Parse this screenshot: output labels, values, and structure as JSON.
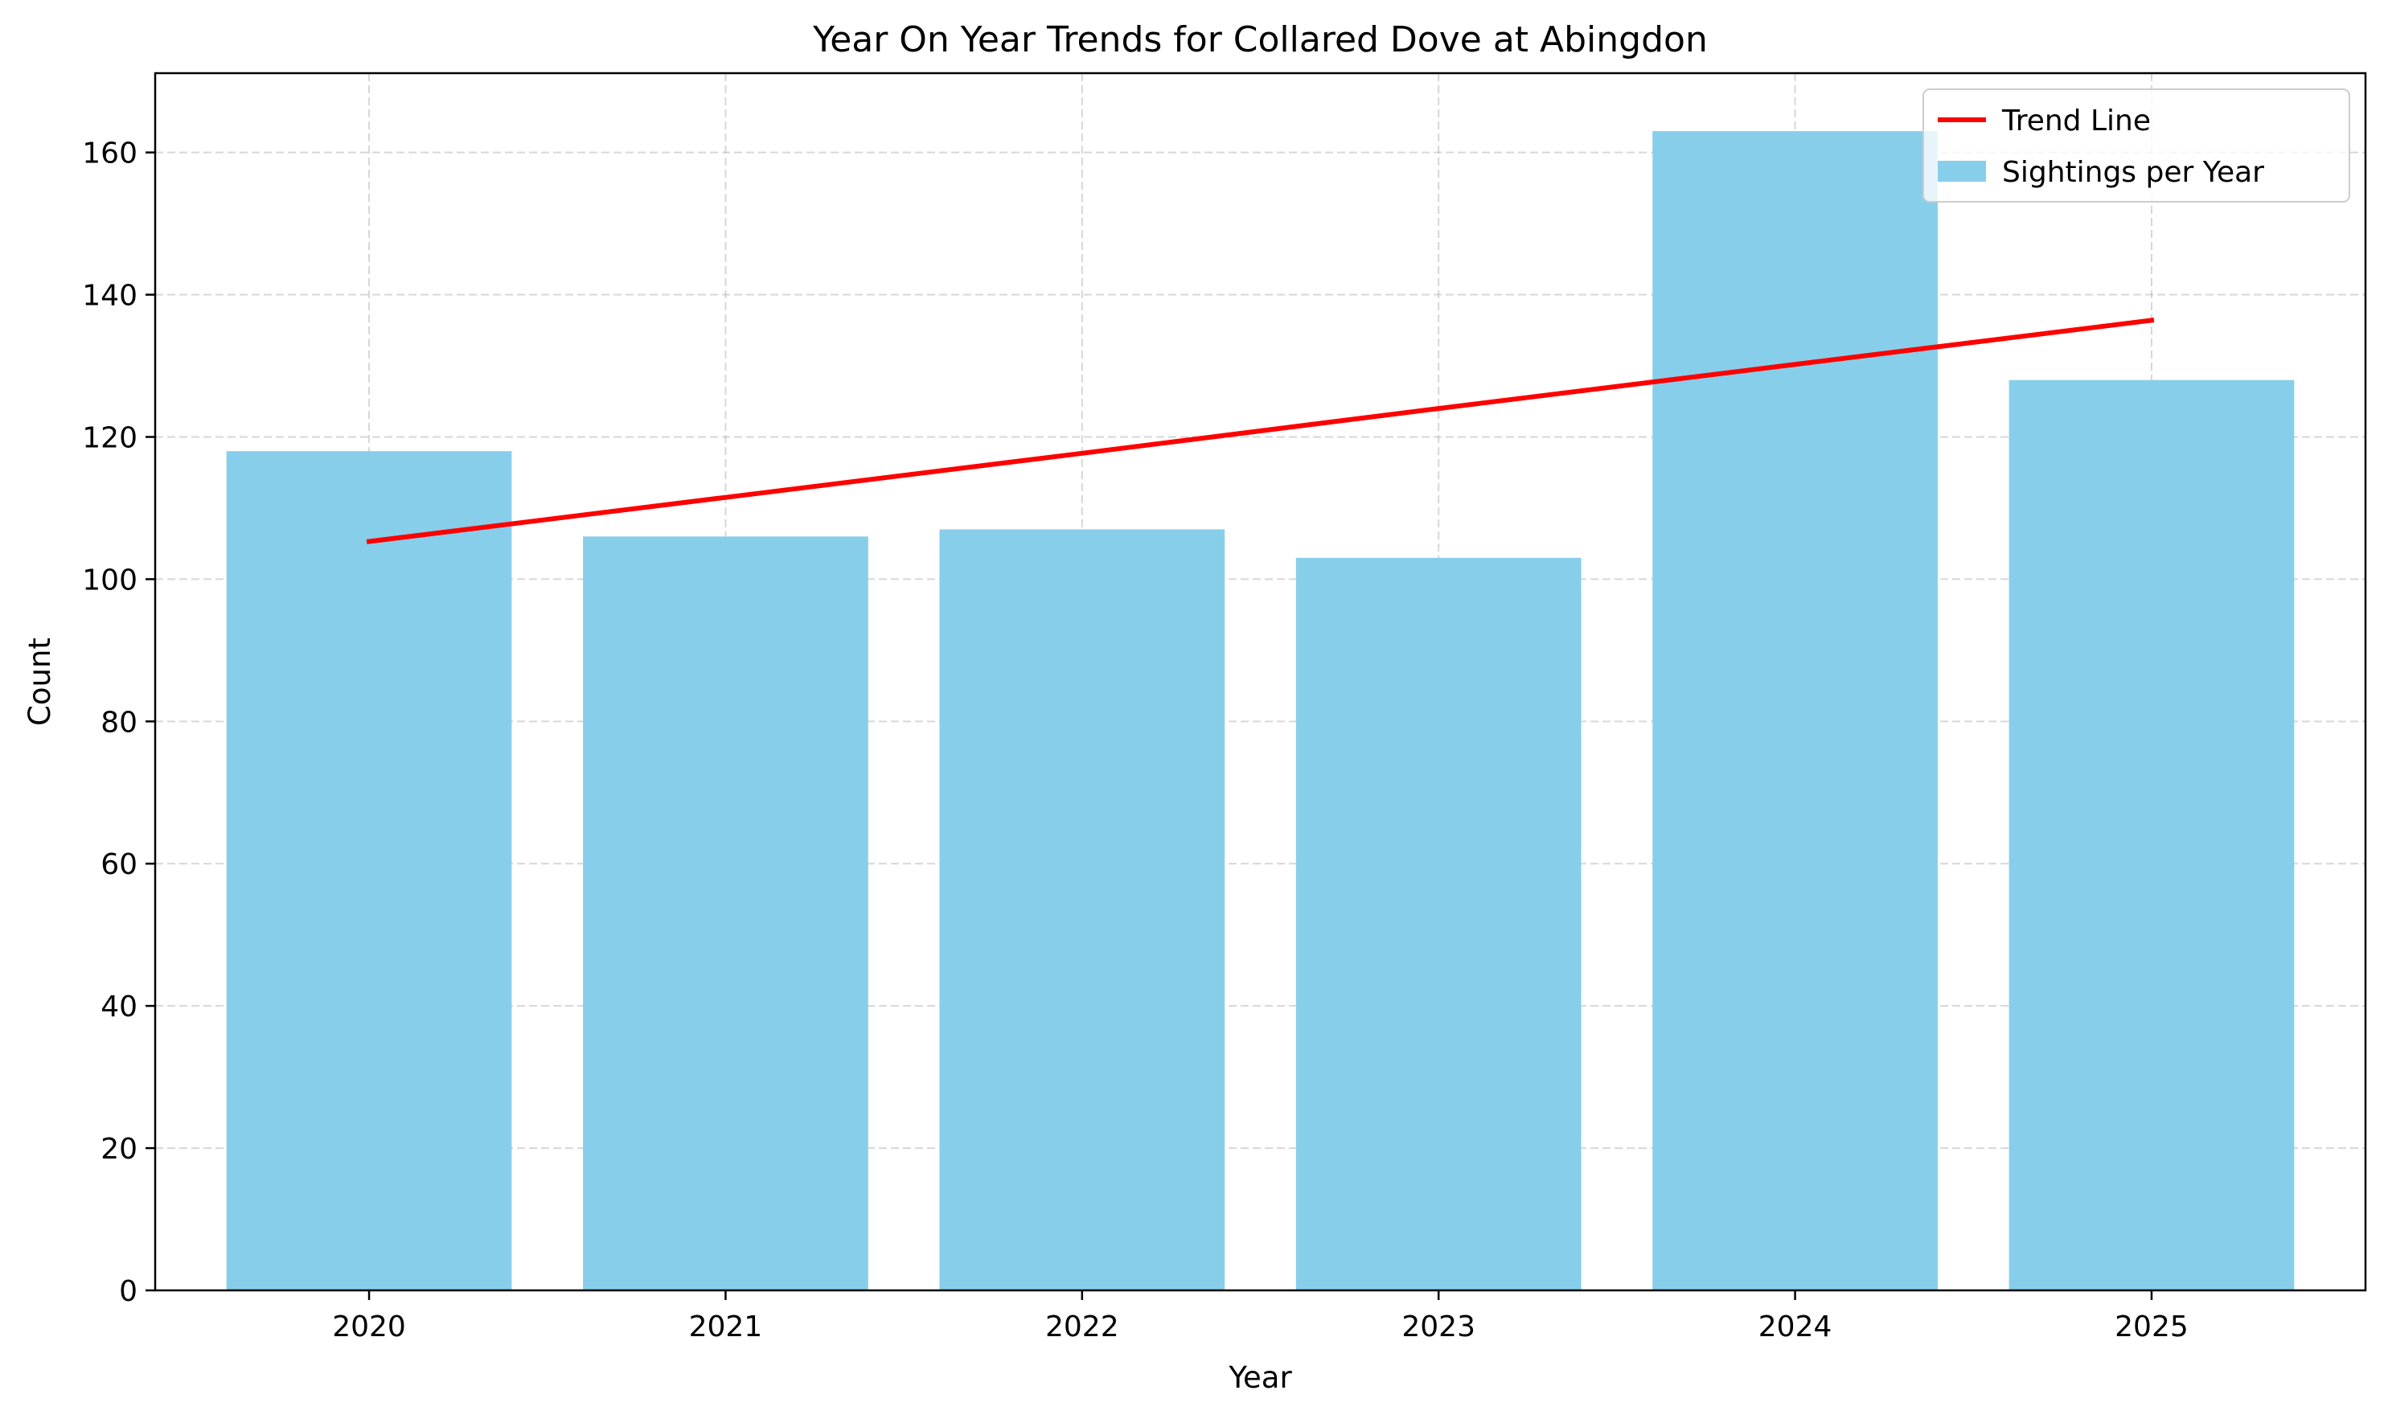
{
  "chart_data": {
    "type": "bar",
    "title": "Year On Year Trends for Collared Dove at Abingdon",
    "xlabel": "Year",
    "ylabel": "Count",
    "categories": [
      "2020",
      "2021",
      "2022",
      "2023",
      "2024",
      "2025"
    ],
    "series": [
      {
        "name": "Sightings per Year",
        "type": "bar",
        "color": "#87CEEB",
        "values": [
          118,
          106,
          107,
          103,
          163,
          128
        ]
      },
      {
        "name": "Trend Line",
        "type": "line",
        "color": "#FF0000",
        "values": [
          105.3,
          111.5,
          117.7,
          124.0,
          130.2,
          136.4
        ]
      }
    ],
    "ylim": [
      0,
      171.15
    ],
    "yticks": [
      0,
      20,
      40,
      60,
      80,
      100,
      120,
      140,
      160
    ],
    "grid": true,
    "legend": {
      "position": "top-right",
      "entries": [
        {
          "label": "Trend Line",
          "kind": "line",
          "color": "#FF0000"
        },
        {
          "label": "Sightings per Year",
          "kind": "patch",
          "color": "#87CEEB"
        }
      ]
    }
  }
}
